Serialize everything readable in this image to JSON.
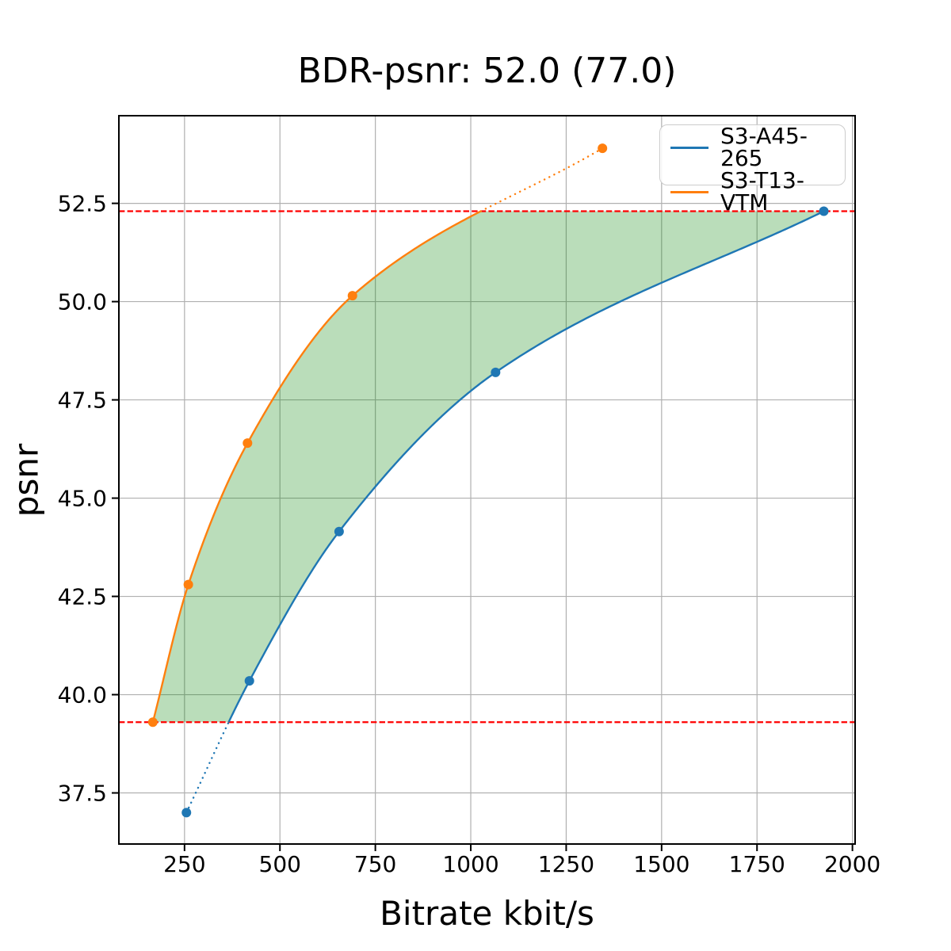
{
  "chart_data": {
    "type": "line",
    "title": "BDR-psnr: 52.0 (77.0)",
    "xlabel": "Bitrate kbit/s",
    "ylabel": "psnr",
    "xlim": [
      78,
      2007
    ],
    "ylim": [
      36.2,
      54.73
    ],
    "xticks": [
      250,
      500,
      750,
      1000,
      1250,
      1500,
      1750,
      2000
    ],
    "yticks": [
      37.5,
      40.0,
      42.5,
      45.0,
      47.5,
      50.0,
      52.5
    ],
    "xtick_labels": [
      "250",
      "500",
      "750",
      "1000",
      "1250",
      "1500",
      "1750",
      "2000"
    ],
    "ytick_labels": [
      "37.5",
      "40.0",
      "42.5",
      "45.0",
      "47.5",
      "50.0",
      "52.5"
    ],
    "grid": true,
    "grid_color": "#b0b0b0",
    "axes_color": "#000000",
    "legend_position": "upper right",
    "series": [
      {
        "name": "S3-A45-265",
        "color": "#1f77b4",
        "x": [
          255,
          420,
          655,
          1065,
          1925
        ],
        "y": [
          37.0,
          40.35,
          44.15,
          48.2,
          52.3
        ]
      },
      {
        "name": "S3-T13-VTM",
        "color": "#ff7f0e",
        "x": [
          167,
          260,
          415,
          690,
          1345
        ],
        "y": [
          39.3,
          42.8,
          46.4,
          50.15,
          53.9
        ]
      }
    ],
    "overlap_hlines": {
      "values": [
        39.3,
        52.3
      ],
      "color": "#ff0000",
      "style": "dashed"
    },
    "line_style_outside_overlap": "dotted",
    "fill_between": {
      "color": "#008000",
      "opacity": 0.27,
      "description": "area between the two curves clipped to psnr range 39.3 to 52.3"
    },
    "marker": "circle",
    "marker_size": 6
  }
}
